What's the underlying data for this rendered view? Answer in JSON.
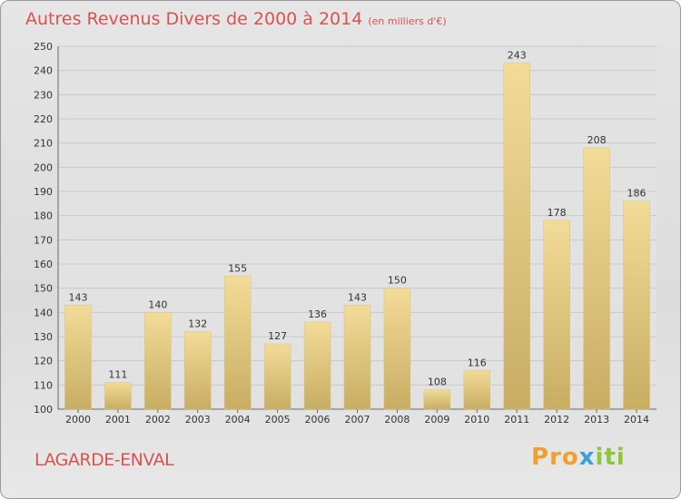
{
  "title": "Autres Revenus Divers de 2000 à 2014",
  "subtitle": "(en milliers d'€)",
  "commune": "LAGARDE-ENVAL",
  "logo": {
    "letters": [
      "P",
      "r",
      "o",
      "x",
      "i",
      "t",
      "i"
    ],
    "colors": [
      "#f0a030",
      "#f0a030",
      "#f0a030",
      "#3aa0dc",
      "#8cc63f",
      "#8cc63f",
      "#8cc63f"
    ]
  },
  "colors": {
    "bar_light": "#f3dc98",
    "bar_dark": "#c8ad63",
    "title": "#d9534f"
  },
  "chart_data": {
    "type": "bar",
    "categories": [
      "2000",
      "2001",
      "2002",
      "2003",
      "2004",
      "2005",
      "2006",
      "2007",
      "2008",
      "2009",
      "2010",
      "2011",
      "2012",
      "2013",
      "2014"
    ],
    "values": [
      143,
      111,
      140,
      132,
      155,
      127,
      136,
      143,
      150,
      108,
      116,
      243,
      178,
      208,
      186
    ],
    "ylim": [
      100,
      250
    ],
    "yticks": [
      100,
      110,
      120,
      130,
      140,
      150,
      160,
      170,
      180,
      190,
      200,
      210,
      220,
      230,
      240,
      250
    ],
    "grid": true
  }
}
